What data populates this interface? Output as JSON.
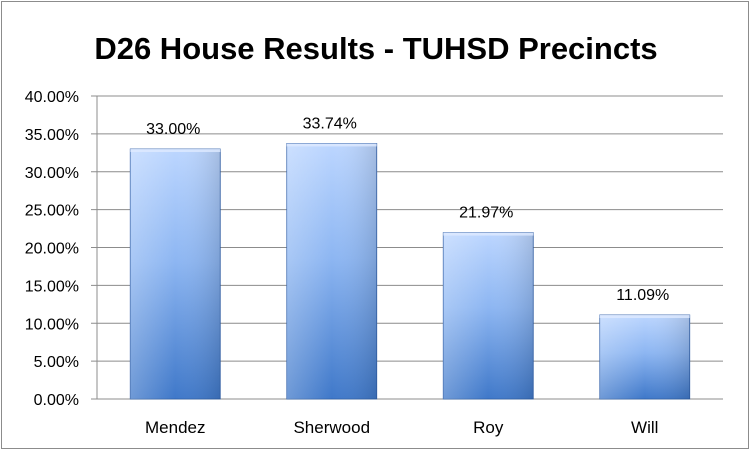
{
  "chart_data": {
    "type": "bar",
    "title": "D26 House Results - TUHSD Precincts",
    "categories": [
      "Mendez",
      "Sherwood",
      "Roy",
      "Will"
    ],
    "values": [
      33.0,
      33.74,
      21.97,
      11.09
    ],
    "data_labels": [
      "33.00%",
      "33.74%",
      "21.97%",
      "11.09%"
    ],
    "y_ticks": [
      "0.00%",
      "5.00%",
      "10.00%",
      "15.00%",
      "20.00%",
      "25.00%",
      "30.00%",
      "35.00%",
      "40.00%"
    ],
    "ylim": [
      0,
      40
    ],
    "ytick_step": 5,
    "xlabel": "",
    "ylabel": "",
    "grid": true,
    "legend": "none",
    "colors": {
      "bar_top": "#bcd6ff",
      "bar_mid": "#8db6f2",
      "bar_bottom": "#3f78c9",
      "bar_edge": "#2f5fa8",
      "grid": "#8c8c8c"
    }
  }
}
